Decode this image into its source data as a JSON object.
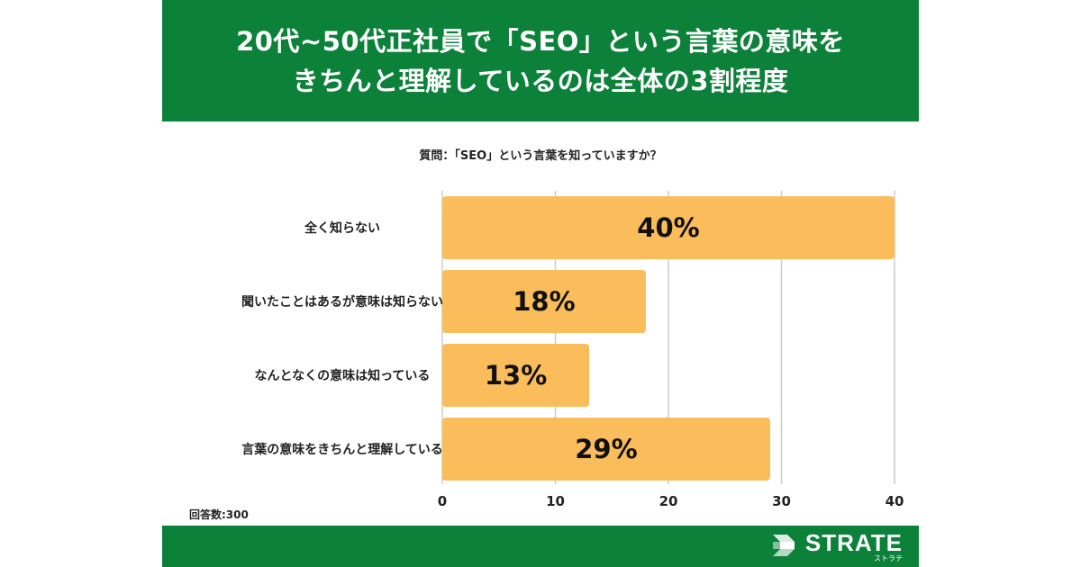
{
  "header": {
    "title_line1": "20代~50代正社員で「SEO」という言葉の意味を",
    "title_line2": "きちんと理解しているのは全体の3割程度"
  },
  "chart_data": {
    "type": "bar",
    "orientation": "horizontal",
    "title": "質問：「SEO」という言葉を知っていますか？",
    "categories": [
      "全く知らない",
      "聞いたことはあるが意味は知らない",
      "なんとなくの意味は知っている",
      "言葉の意味をきちんと理解している"
    ],
    "values": [
      40,
      18,
      13,
      29
    ],
    "data_labels": [
      "40%",
      "18%",
      "13%",
      "29%"
    ],
    "xlim": [
      0,
      40
    ],
    "xticks": [
      "0",
      "10",
      "20",
      "30",
      "40"
    ],
    "grid": true,
    "bar_color": "#fbbd5c"
  },
  "respondents": "回答数:300",
  "footer": {
    "logo_name": "STRATE",
    "logo_sub": "ストラテ",
    "brand_color": "#0b8139"
  }
}
